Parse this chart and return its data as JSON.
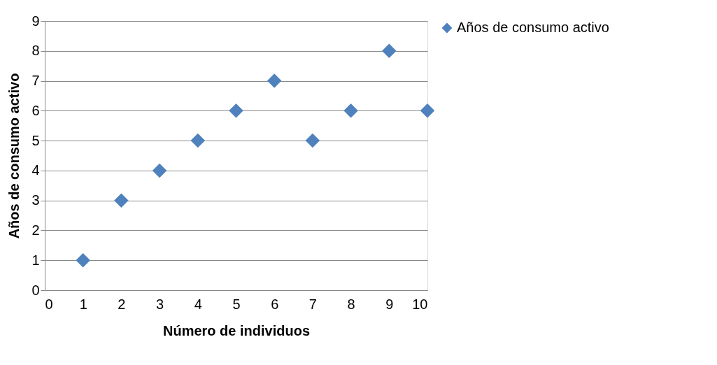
{
  "chart_data": {
    "type": "scatter",
    "xlabel": "Número de individuos",
    "ylabel": "Años de consumo activo",
    "x": [
      1,
      2,
      3,
      4,
      5,
      6,
      7,
      8,
      9,
      10
    ],
    "series": [
      {
        "name": "Años de consumo activo",
        "color": "#4f81bd",
        "values": [
          1,
          3,
          4,
          5,
          6,
          7,
          5,
          6,
          8,
          6
        ]
      }
    ],
    "xlim": [
      0,
      10
    ],
    "xticks": [
      0,
      1,
      2,
      3,
      4,
      5,
      6,
      7,
      8,
      9,
      10
    ],
    "ylim": [
      0,
      9
    ],
    "yticks": [
      0,
      1,
      2,
      3,
      4,
      5,
      6,
      7,
      8,
      9
    ],
    "grid": "y",
    "legend": "right",
    "marker": "diamond"
  }
}
